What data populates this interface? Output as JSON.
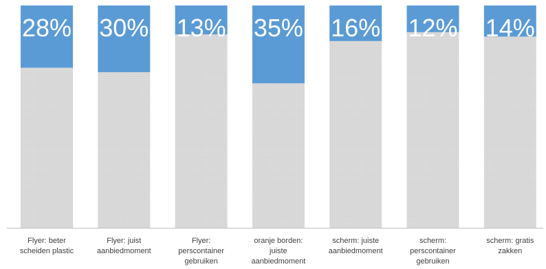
{
  "chart_data": {
    "type": "bar",
    "stacked": true,
    "categories": [
      "Flyer: beter scheiden plastic",
      "Flyer: juist aanbiedmoment",
      "Flyer: perscontainer gebruiken",
      "oranje borden: juiste aanbiedmoment",
      "scherm: juiste aanbiedmoment",
      "scherm: perscontainer gebruiken",
      "scherm: gratis zakken"
    ],
    "category_lines": [
      [
        "Flyer: beter",
        "scheiden plastic"
      ],
      [
        "Flyer: juist",
        "aanbiedmoment"
      ],
      [
        "Flyer:",
        "perscontainer",
        "gebruiken"
      ],
      [
        "oranje borden:",
        "juiste",
        "aanbiedmoment"
      ],
      [
        "scherm: juiste",
        "aanbiedmoment"
      ],
      [
        "scherm:",
        "perscontainer",
        "gebruiken"
      ],
      [
        "scherm: gratis",
        "zakken"
      ]
    ],
    "series": [
      {
        "values": [
          28,
          30,
          13,
          35,
          16,
          12,
          14
        ],
        "color": "#5b9bd5"
      },
      {
        "values": [
          72,
          70,
          87,
          65,
          84,
          88,
          86
        ],
        "color": "#d9d9d9"
      }
    ],
    "data_labels": [
      "28%",
      "30%",
      "13%",
      "35%",
      "16%",
      "12%",
      "14%"
    ],
    "ylim": [
      0,
      100
    ],
    "title": "",
    "xlabel": "",
    "ylabel": "",
    "grid": false,
    "legend": "none"
  }
}
